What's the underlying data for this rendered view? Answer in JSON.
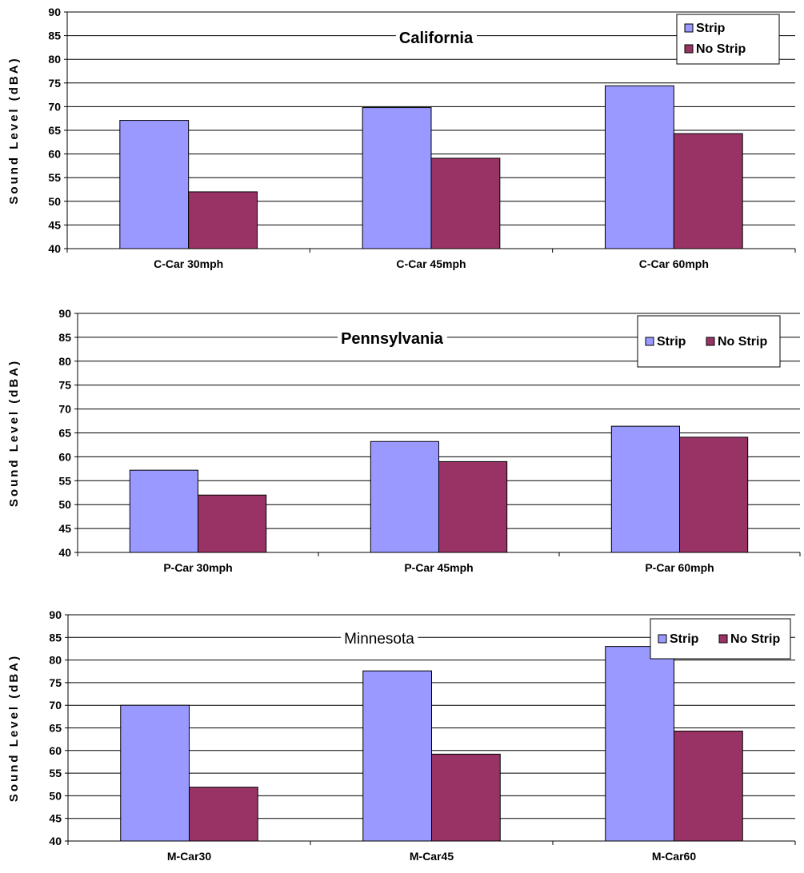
{
  "colors": {
    "strip": "#9999ff",
    "no_strip": "#993366",
    "grid": "#000000",
    "background": "#ffffff"
  },
  "chart_data": [
    {
      "type": "bar",
      "title": "California",
      "ylabel": "Sound Level (dBA)",
      "ylim": [
        40,
        90
      ],
      "yticks": [
        40,
        45,
        50,
        55,
        60,
        65,
        70,
        75,
        80,
        85,
        90
      ],
      "categories": [
        "C-Car 30mph",
        "C-Car 45mph",
        "C-Car 60mph"
      ],
      "series": [
        {
          "name": "Strip",
          "values": [
            67.1,
            69.8,
            74.4
          ]
        },
        {
          "name": "No Strip",
          "values": [
            52.0,
            59.1,
            64.3
          ]
        }
      ],
      "grid": true,
      "legend": "top-right",
      "legend_layout": "vertical"
    },
    {
      "type": "bar",
      "title": "Pennsylvania",
      "ylabel": "Sound Level (dBA)",
      "ylim": [
        40,
        90
      ],
      "yticks": [
        40,
        45,
        50,
        55,
        60,
        65,
        70,
        75,
        80,
        85,
        90
      ],
      "categories": [
        "P-Car 30mph",
        "P-Car 45mph",
        "P-Car 60mph"
      ],
      "series": [
        {
          "name": "Strip",
          "values": [
            57.2,
            63.2,
            66.4
          ]
        },
        {
          "name": "No Strip",
          "values": [
            52.0,
            59.0,
            64.1
          ]
        }
      ],
      "grid": true,
      "legend": "top-right",
      "legend_layout": "horizontal"
    },
    {
      "type": "bar",
      "title": "Minnesota",
      "ylabel": "Sound Level (dBA)",
      "ylim": [
        40,
        90
      ],
      "yticks": [
        40,
        45,
        50,
        55,
        60,
        65,
        70,
        75,
        80,
        85,
        90
      ],
      "categories": [
        "M-Car30",
        "M-Car45",
        "M-Car60"
      ],
      "series": [
        {
          "name": "Strip",
          "values": [
            70.0,
            77.6,
            83.0
          ]
        },
        {
          "name": "No Strip",
          "values": [
            51.9,
            59.2,
            64.3
          ]
        }
      ],
      "grid": true,
      "legend": "top-right",
      "legend_layout": "horizontal"
    }
  ]
}
